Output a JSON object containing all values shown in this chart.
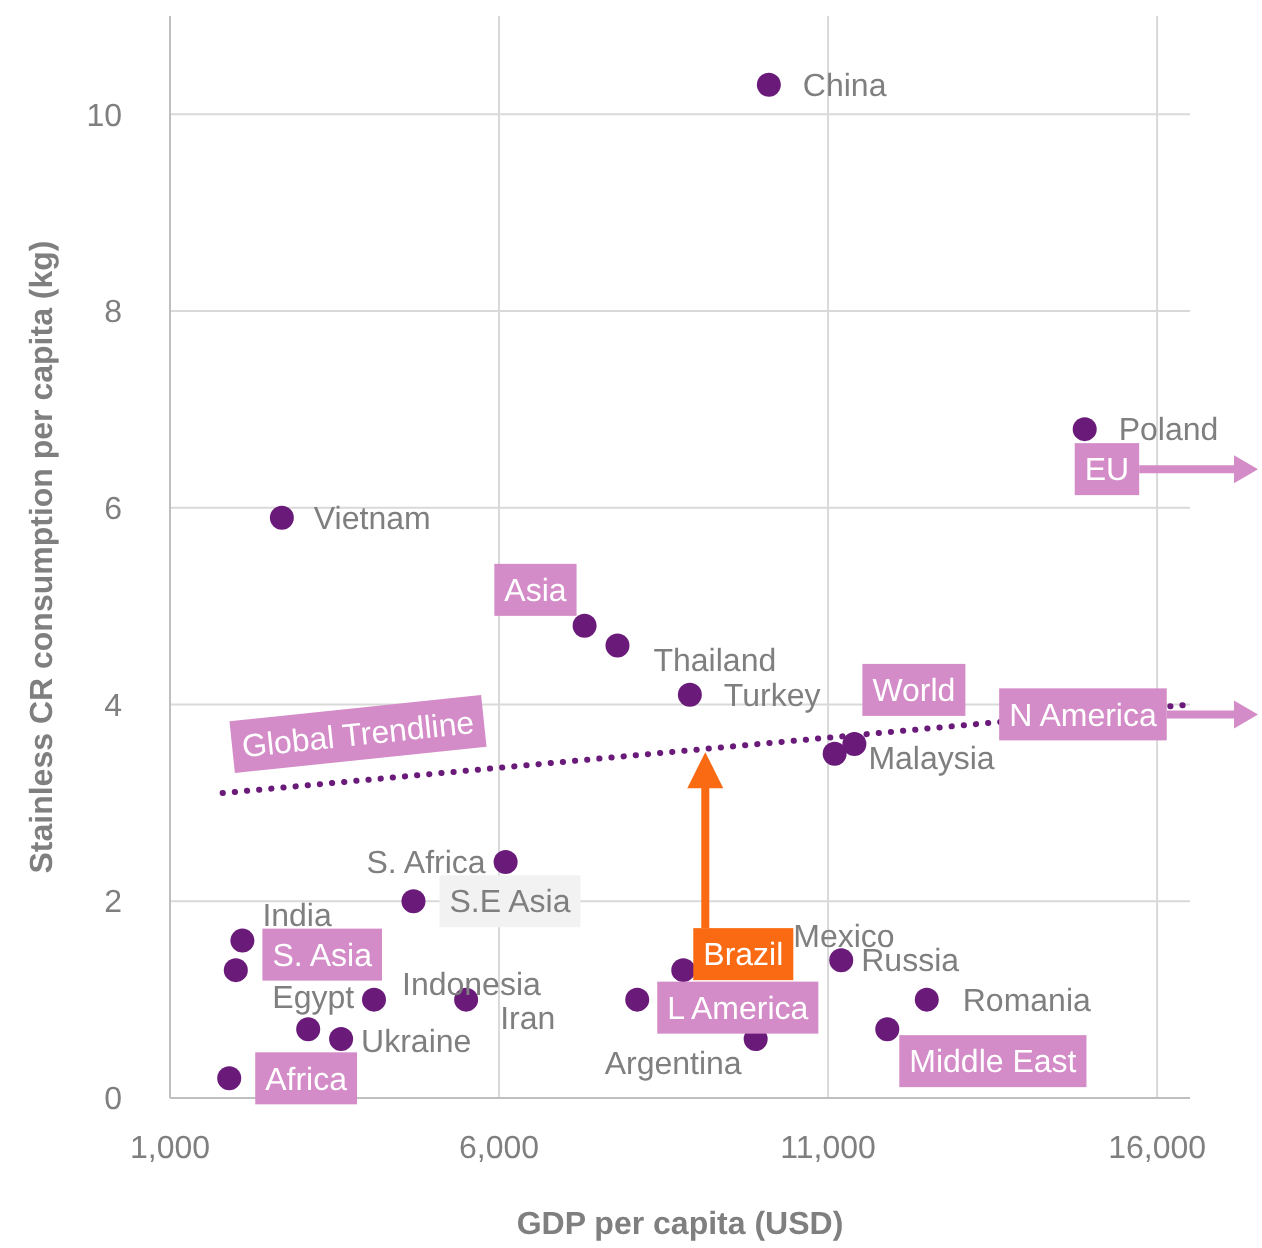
{
  "chart_data": {
    "type": "scatter",
    "xlabel": "GDP per capita (USD)",
    "ylabel": "Stainless CR consumption per capita (kg)",
    "xlim": [
      1000,
      16500
    ],
    "xticks": [
      {
        "value": 1000,
        "label": "1,000"
      },
      {
        "value": 6000,
        "label": "6,000"
      },
      {
        "value": 11000,
        "label": "11,000"
      },
      {
        "value": 16000,
        "label": "16,000"
      }
    ],
    "ylim": [
      0,
      11
    ],
    "yticks": [
      0,
      2,
      4,
      6,
      8,
      10
    ],
    "grid": true,
    "marker": "circle",
    "series": [
      {
        "color": "#6a1b7a",
        "x": [
          10100,
          14900,
          2700,
          7300,
          7800,
          8900,
          11100,
          11400,
          6100,
          4700,
          2100,
          2000,
          4100,
          5500,
          3100,
          3600,
          1900,
          8100,
          8800,
          9900,
          11200,
          12500,
          11900
        ],
        "values": [
          10.3,
          6.8,
          5.9,
          4.8,
          4.6,
          4.1,
          3.5,
          3.6,
          2.4,
          2.0,
          1.6,
          1.3,
          1.0,
          1.0,
          0.7,
          0.6,
          0.2,
          1.0,
          1.3,
          0.6,
          1.4,
          1.0,
          0.7
        ]
      },
      {
        "type": "line",
        "color": "#6a1b7a",
        "line_style": "dotted",
        "marker": "none",
        "x": [
          1800,
          16500
        ],
        "values": [
          3.1,
          4.0
        ]
      }
    ],
    "annotations": [
      {
        "text": "China",
        "x": 10100,
        "y": 10.3
      },
      {
        "text": "Poland",
        "x": 14900,
        "y": 6.8
      },
      {
        "text": "Vietnam",
        "x": 2700,
        "y": 5.9
      },
      {
        "text": "Thailand",
        "x": 7800,
        "y": 4.6
      },
      {
        "text": "Turkey",
        "x": 8900,
        "y": 4.1
      },
      {
        "text": "Malaysia",
        "x": 11400,
        "y": 3.6
      },
      {
        "text": "S. Africa",
        "x": 6100,
        "y": 2.4
      },
      {
        "text": "India",
        "x": 2100,
        "y": 1.6
      },
      {
        "text": "Egypt",
        "x": 3100,
        "y": 0.7
      },
      {
        "text": "Indonesia",
        "x": 4100,
        "y": 1.0
      },
      {
        "text": "Iran",
        "x": 5500,
        "y": 1.0
      },
      {
        "text": "Ukraine",
        "x": 3600,
        "y": 0.6
      },
      {
        "text": "Argentina",
        "x": 9900,
        "y": 0.6
      },
      {
        "text": "Mexico",
        "x": 11200,
        "y": 1.4
      },
      {
        "text": "Russia",
        "x": 11200,
        "y": 1.4
      },
      {
        "text": "Romania",
        "x": 12500,
        "y": 1.0
      },
      {
        "text": "Asia",
        "x": 7300,
        "y": 4.8
      },
      {
        "text": "World",
        "x": 11400,
        "y": 3.6
      },
      {
        "text": "N America",
        "x": 13600,
        "y": 3.9
      },
      {
        "text": "EU",
        "x": 14900,
        "y": 6.8
      },
      {
        "text": "S. Asia",
        "x": 2100,
        "y": 1.6
      },
      {
        "text": "L America",
        "x": 8100,
        "y": 1.0
      },
      {
        "text": "Middle East",
        "x": 11900,
        "y": 0.7
      },
      {
        "text": "Africa",
        "x": 1900,
        "y": 0.2
      },
      {
        "text": "S.E Asia",
        "x": 4700,
        "y": 2.0
      },
      "Global Trendline",
      {
        "text": "Brazil",
        "x": 8800,
        "y": 1.3
      }
    ]
  }
}
